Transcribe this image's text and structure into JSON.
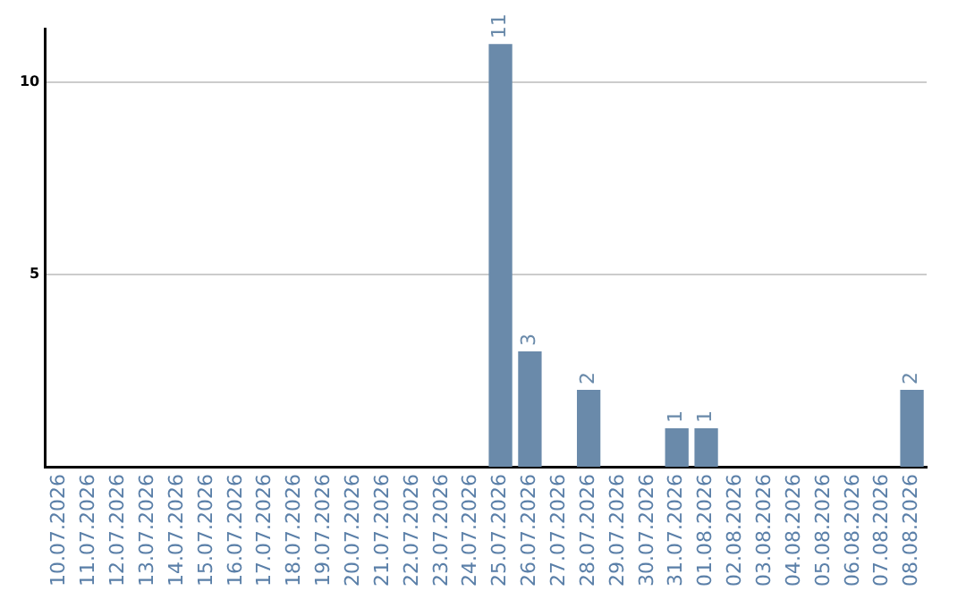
{
  "chart_data": {
    "type": "bar",
    "categories": [
      "10.07.2026",
      "11.07.2026",
      "12.07.2026",
      "13.07.2026",
      "14.07.2026",
      "15.07.2026",
      "16.07.2026",
      "17.07.2026",
      "18.07.2026",
      "19.07.2026",
      "20.07.2026",
      "21.07.2026",
      "22.07.2026",
      "23.07.2026",
      "24.07.2026",
      "25.07.2026",
      "26.07.2026",
      "27.07.2026",
      "28.07.2026",
      "29.07.2026",
      "30.07.2026",
      "31.07.2026",
      "01.08.2026",
      "02.08.2026",
      "03.08.2026",
      "04.08.2026",
      "05.08.2026",
      "06.08.2026",
      "07.08.2026",
      "08.08.2026"
    ],
    "values": [
      0,
      0,
      0,
      0,
      0,
      0,
      0,
      0,
      0,
      0,
      0,
      0,
      0,
      0,
      0,
      11,
      3,
      0,
      2,
      0,
      0,
      1,
      1,
      0,
      0,
      0,
      0,
      0,
      0,
      2
    ],
    "value_labels": [
      null,
      null,
      null,
      null,
      null,
      null,
      null,
      null,
      null,
      null,
      null,
      null,
      null,
      null,
      null,
      "11",
      "3",
      null,
      "2",
      null,
      null,
      "1",
      "1",
      null,
      null,
      null,
      null,
      null,
      null,
      "2"
    ],
    "color": "#6a8aaa",
    "ylim": [
      0,
      11.4
    ],
    "yticks": [
      5,
      10
    ],
    "grid": "y",
    "legend": false
  }
}
